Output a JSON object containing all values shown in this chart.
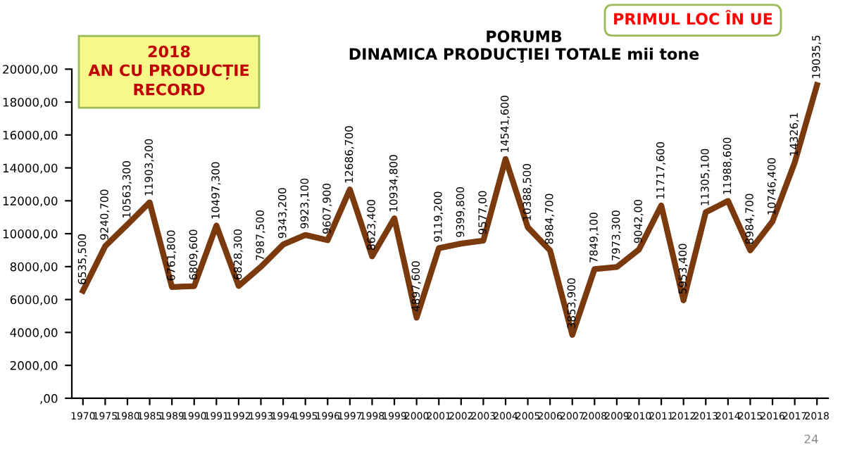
{
  "chart_data": {
    "type": "line",
    "title": "PORUMB\nDINAMICA PRODUCŢIEI TOTALE mii tone",
    "categories": [
      "1970",
      "1975",
      "1980",
      "1985",
      "1989",
      "1990",
      "1991",
      "1992",
      "1993",
      "1994",
      "1995",
      "1996",
      "1997",
      "1998",
      "1999",
      "2000",
      "2001",
      "2002",
      "2003",
      "2004",
      "2005",
      "2006",
      "2007",
      "2008",
      "2009",
      "2010",
      "2011",
      "2012",
      "2013",
      "2014",
      "2015",
      "2016",
      "2017",
      "2018"
    ],
    "series": [
      {
        "color": "#7b3a0e",
        "values": [
          6535.5,
          9240.7,
          10563.3,
          11903.2,
          6761.8,
          6809.6,
          10497.3,
          6828.3,
          7987.5,
          9343.2,
          9923.1,
          9607.9,
          12686.7,
          8623.4,
          10934.8,
          4897.6,
          9119.2,
          9399.8,
          9577.0,
          14541.6,
          10388.5,
          8984.7,
          3853.9,
          7849.1,
          7973.3,
          9042.0,
          11717.6,
          5953.4,
          11305.1,
          11988.6,
          8984.7,
          10746.4,
          14326.1,
          19035.5
        ],
        "value_labels": [
          "6535,500",
          "9240,700",
          "10563,300",
          "11903,200",
          "6761,800",
          "6809,600",
          "10497,300",
          "6828,300",
          "7987,500",
          "9343,200",
          "9923,100",
          "9607,900",
          "12686,700",
          "8623,400",
          "10934,800",
          "4897,600",
          "9119,200",
          "9399,800",
          "9577,00",
          "14541,600",
          "10388,500",
          "8984,700",
          "3853,900",
          "7849,100",
          "7973,300",
          "9042,00",
          "11717,600",
          "5953,400",
          "11305,100",
          "11988,600",
          "8984,700",
          "10746,400",
          "14326,1",
          "19035,5"
        ]
      }
    ],
    "ylim": [
      0,
      20000
    ],
    "yticks": [
      {
        "value": 0,
        "label": ",00"
      },
      {
        "value": 2000,
        "label": "2000,00"
      },
      {
        "value": 4000,
        "label": "4000,00"
      },
      {
        "value": 6000,
        "label": "6000,00"
      },
      {
        "value": 8000,
        "label": "8000,00"
      },
      {
        "value": 10000,
        "label": "10000,00"
      },
      {
        "value": 12000,
        "label": "12000,00"
      },
      {
        "value": 14000,
        "label": "14000,00"
      },
      {
        "value": 16000,
        "label": "16000,00"
      },
      {
        "value": 18000,
        "label": "18000,00"
      },
      {
        "value": 20000,
        "label": "20000,00"
      }
    ],
    "grid": false,
    "legend": false,
    "marker": "none",
    "line_style": "solid",
    "annotations": [
      "2018\nAN CU PRODUCȚIE\nRECORD",
      "PRIMUL LOC ÎN UE",
      "24"
    ]
  }
}
